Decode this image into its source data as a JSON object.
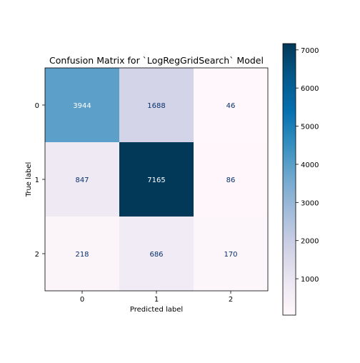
{
  "chart_data": {
    "type": "heatmap",
    "title": "Confusion Matrix for `LogRegGridSearch` Model",
    "xlabel": "Predicted label",
    "ylabel": "True label",
    "x_categories": [
      "0",
      "1",
      "2"
    ],
    "y_categories": [
      "0",
      "1",
      "2"
    ],
    "values": [
      [
        3944,
        1688,
        46
      ],
      [
        847,
        7165,
        86
      ],
      [
        218,
        686,
        170
      ]
    ],
    "colormap": "PuBu",
    "colorbar": {
      "range": [
        46,
        7165
      ],
      "ticks": [
        1000,
        2000,
        3000,
        4000,
        5000,
        6000,
        7000
      ],
      "tick_labels": [
        "1000",
        "2000",
        "3000",
        "4000",
        "5000",
        "6000",
        "7000"
      ]
    },
    "text_color_light": "#ffffff",
    "text_color_dark": "#08306b"
  }
}
